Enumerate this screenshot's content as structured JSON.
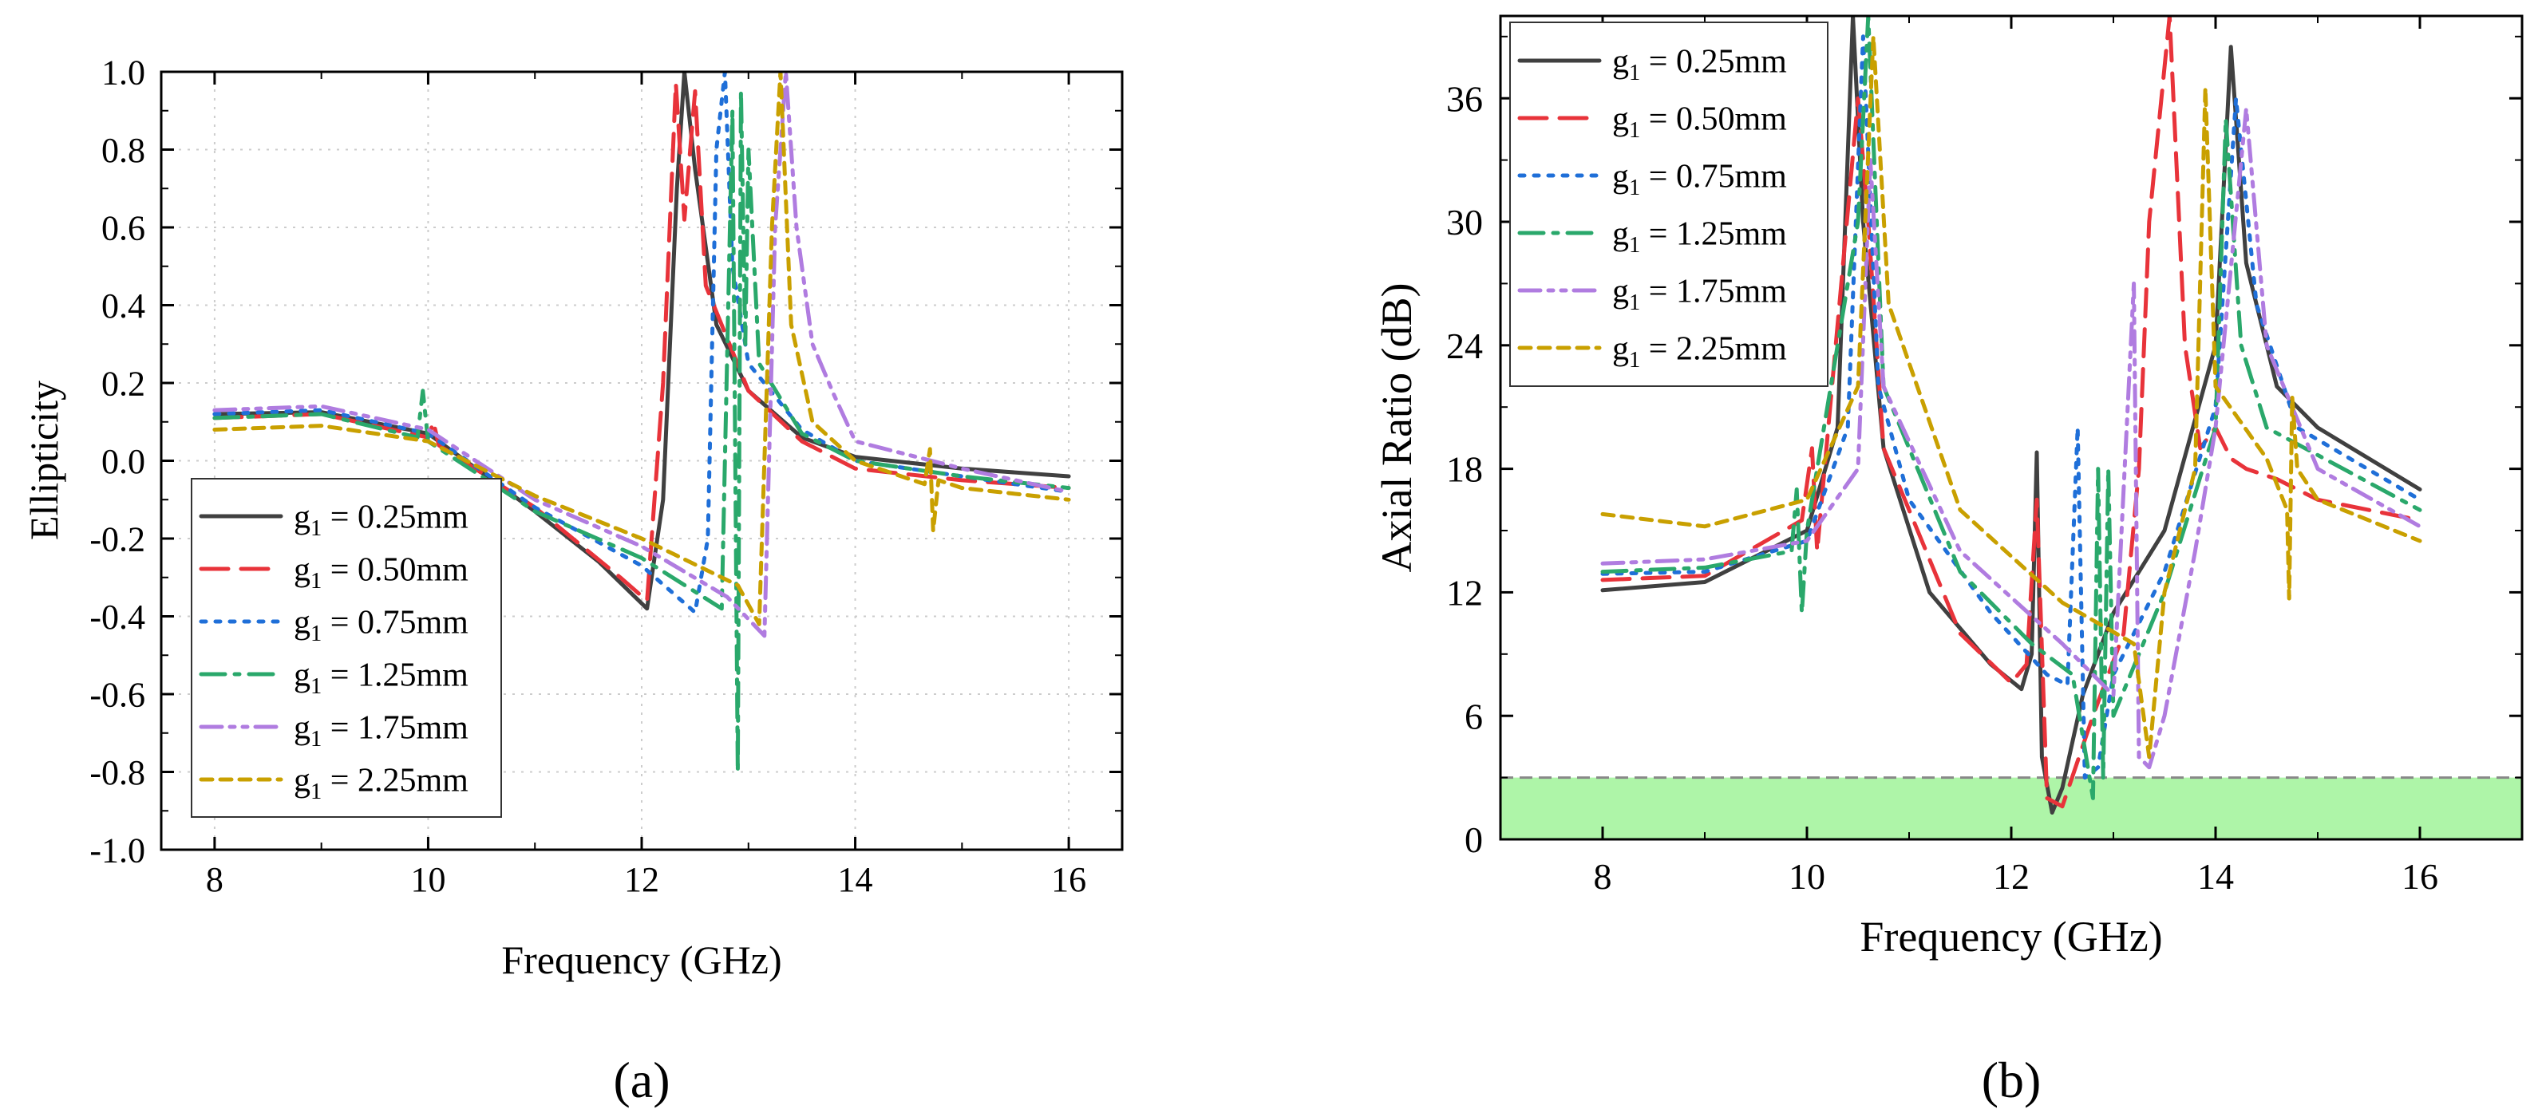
{
  "colors": {
    "g025": "#404040",
    "g050": "#e8333a",
    "g075": "#1f6fd8",
    "g125": "#2aa86b",
    "g175": "#b07ce0",
    "g225": "#c9a000",
    "band_fill": "#aef5a8",
    "band_line": "#888888",
    "grid": "#cccccc"
  },
  "chart_data": [
    {
      "type": "line",
      "panel_label": "(a)",
      "title": "",
      "xlabel": "Frequency (GHz)",
      "ylabel": "Ellipticity",
      "xlim": [
        7.5,
        16.5
      ],
      "ylim": [
        -1.0,
        1.0
      ],
      "grid": true,
      "legend_position": "bottom-left",
      "x_ticks": [
        8,
        10,
        12,
        14,
        16
      ],
      "x_tick_labels": [
        "8",
        "10",
        "12",
        "14",
        "16"
      ],
      "y_ticks": [
        -1.0,
        -0.8,
        -0.6,
        -0.4,
        -0.2,
        0.0,
        0.2,
        0.4,
        0.6,
        0.8,
        1.0
      ],
      "y_tick_labels": [
        "-1.0",
        "-0.8",
        "-0.6",
        "-0.4",
        "-0.2",
        "0.0",
        "0.2",
        "0.4",
        "0.6",
        "0.8",
        "1.0"
      ],
      "series": [
        {
          "name": "g1 = 0.25mm",
          "label_main": "g",
          "label_sub": "1",
          "label_rest": " = 0.25mm",
          "color_key": "g025",
          "dash": "solid",
          "x": [
            8.0,
            9.0,
            10.0,
            11.0,
            11.6,
            12.05,
            12.2,
            12.33,
            12.4,
            12.5,
            12.7,
            13.0,
            13.5,
            14.0,
            15.0,
            16.0
          ],
          "y": [
            0.12,
            0.125,
            0.07,
            -0.13,
            -0.26,
            -0.38,
            -0.1,
            0.7,
            1.0,
            0.75,
            0.35,
            0.18,
            0.06,
            0.01,
            -0.02,
            -0.04
          ]
        },
        {
          "name": "g1 = 0.50mm",
          "label_main": "g",
          "label_sub": "1",
          "label_rest": " = 0.50mm",
          "color_key": "g050",
          "dash": "dashed",
          "x": [
            8.0,
            9.0,
            10.0,
            10.05,
            10.1,
            11.0,
            11.8,
            12.05,
            12.2,
            12.32,
            12.4,
            12.5,
            12.6,
            13.0,
            13.5,
            14.0,
            15.0,
            16.0
          ],
          "y": [
            0.11,
            0.12,
            0.06,
            0.1,
            0.04,
            -0.12,
            -0.3,
            -0.36,
            0.2,
            0.97,
            0.62,
            0.95,
            0.45,
            0.18,
            0.05,
            -0.02,
            -0.05,
            -0.07
          ]
        },
        {
          "name": "g1 = 0.75mm",
          "label_main": "g",
          "label_sub": "1",
          "label_rest": " = 0.75mm",
          "color_key": "g075",
          "dash": "dotted",
          "x": [
            8.0,
            9.0,
            10.0,
            11.0,
            12.0,
            12.5,
            12.62,
            12.7,
            12.78,
            12.85,
            13.0,
            13.5,
            14.0,
            15.0,
            16.0
          ],
          "y": [
            0.12,
            0.13,
            0.07,
            -0.12,
            -0.27,
            -0.39,
            -0.2,
            0.8,
            1.0,
            0.5,
            0.25,
            0.08,
            0.0,
            -0.04,
            -0.08
          ]
        },
        {
          "name": "g1 = 1.25mm",
          "label_main": "g",
          "label_sub": "1",
          "label_rest": " = 1.25mm",
          "color_key": "g125",
          "dash": "dashdot",
          "x": [
            8.0,
            9.0,
            9.9,
            9.95,
            10.0,
            11.0,
            12.0,
            12.75,
            12.85,
            12.9,
            12.93,
            12.97,
            13.0,
            13.1,
            13.5,
            14.0,
            15.0,
            16.0
          ],
          "y": [
            0.11,
            0.12,
            0.06,
            0.18,
            0.05,
            -0.13,
            -0.25,
            -0.38,
            0.9,
            -0.8,
            0.95,
            0.3,
            0.8,
            0.25,
            0.07,
            0.0,
            -0.04,
            -0.07
          ]
        },
        {
          "name": "g1 = 1.75mm",
          "label_main": "g",
          "label_sub": "1",
          "label_rest": " = 1.75mm",
          "color_key": "g175",
          "dash": "dashdotdot",
          "x": [
            8.0,
            9.0,
            10.0,
            11.0,
            12.0,
            12.8,
            13.15,
            13.25,
            13.35,
            13.45,
            13.6,
            13.8,
            14.0,
            15.0,
            16.0
          ],
          "y": [
            0.13,
            0.14,
            0.08,
            -0.1,
            -0.22,
            -0.35,
            -0.45,
            0.6,
            1.0,
            0.6,
            0.3,
            0.17,
            0.05,
            -0.02,
            -0.08
          ]
        },
        {
          "name": "g1 = 2.25mm",
          "label_main": "g",
          "label_sub": "1",
          "label_rest": " = 2.25mm",
          "color_key": "g225",
          "dash": "shortdash",
          "x": [
            8.0,
            9.0,
            10.0,
            11.0,
            12.0,
            12.9,
            13.1,
            13.22,
            13.3,
            13.4,
            13.6,
            14.0,
            14.65,
            14.7,
            14.73,
            14.78,
            15.0,
            16.0
          ],
          "y": [
            0.08,
            0.09,
            0.05,
            -0.09,
            -0.2,
            -0.32,
            -0.42,
            0.6,
            1.0,
            0.35,
            0.1,
            0.0,
            -0.06,
            0.03,
            -0.18,
            -0.05,
            -0.07,
            -0.1
          ]
        }
      ]
    },
    {
      "type": "line",
      "panel_label": "(b)",
      "title": "",
      "xlabel": "Frequency (GHz)",
      "ylabel": "Axial Ratio (dB)",
      "xlim": [
        7.0,
        17.0
      ],
      "ylim": [
        0,
        40
      ],
      "grid": false,
      "legend_position": "top-left",
      "threshold": {
        "value": 3,
        "description": "3 dB axial ratio band"
      },
      "x_ticks": [
        8,
        10,
        12,
        14,
        16
      ],
      "x_tick_labels": [
        "8",
        "10",
        "12",
        "14",
        "16"
      ],
      "y_ticks": [
        0,
        6,
        12,
        18,
        24,
        30,
        36
      ],
      "y_tick_labels": [
        "0",
        "6",
        "12",
        "18",
        "24",
        "30",
        "36"
      ],
      "series": [
        {
          "name": "g1 = 0.25mm",
          "label_main": "g",
          "label_sub": "1",
          "label_rest": " = 0.25mm",
          "color_key": "g025",
          "dash": "solid",
          "x": [
            8.0,
            9.0,
            10.0,
            10.3,
            10.45,
            10.55,
            10.75,
            11.2,
            11.8,
            12.1,
            12.2,
            12.25,
            12.3,
            12.4,
            12.5,
            12.7,
            13.0,
            13.5,
            14.0,
            14.15,
            14.3,
            14.6,
            15.0,
            16.0
          ],
          "y": [
            12.1,
            12.5,
            15.0,
            20.0,
            40.0,
            30.0,
            19.0,
            12.0,
            8.5,
            7.3,
            9.0,
            18.8,
            4.0,
            1.3,
            2.5,
            7.0,
            11.0,
            15.0,
            24.0,
            38.5,
            28.0,
            22.0,
            20.0,
            17.0
          ]
        },
        {
          "name": "g1 = 0.50mm",
          "label_main": "g",
          "label_sub": "1",
          "label_rest": " = 0.50mm",
          "color_key": "g050",
          "dash": "dashed",
          "x": [
            8.0,
            9.0,
            9.95,
            10.05,
            10.1,
            10.5,
            10.6,
            10.75,
            11.5,
            12.0,
            12.15,
            12.25,
            12.35,
            12.5,
            12.8,
            13.1,
            13.25,
            13.35,
            13.55,
            13.7,
            13.85,
            14.0,
            14.15,
            14.3,
            14.6,
            15.0,
            16.0
          ],
          "y": [
            12.6,
            12.8,
            15.5,
            19.0,
            14.0,
            36.0,
            30.0,
            19.0,
            10.0,
            7.6,
            8.5,
            16.5,
            2.0,
            1.6,
            6.0,
            10.0,
            18.0,
            30.0,
            40.0,
            24.0,
            19.0,
            20.0,
            18.5,
            18.0,
            17.5,
            16.5,
            15.5
          ]
        },
        {
          "name": "g1 = 0.75mm",
          "label_main": "g",
          "label_sub": "1",
          "label_rest": " = 0.75mm",
          "color_key": "g075",
          "dash": "dotted",
          "x": [
            8.0,
            9.0,
            10.0,
            10.4,
            10.55,
            10.7,
            11.0,
            11.8,
            12.35,
            12.55,
            12.65,
            12.72,
            12.85,
            13.0,
            13.5,
            14.0,
            14.2,
            14.4,
            14.8,
            16.0
          ],
          "y": [
            12.9,
            13.0,
            14.5,
            20.0,
            39.0,
            22.0,
            16.5,
            11.0,
            8.0,
            7.5,
            20.0,
            3.0,
            3.5,
            8.0,
            13.0,
            21.0,
            36.0,
            26.0,
            20.0,
            16.5
          ]
        },
        {
          "name": "g1 = 1.25mm",
          "label_main": "g",
          "label_sub": "1",
          "label_rest": " = 1.25mm",
          "color_key": "g125",
          "dash": "dashdot",
          "x": [
            8.0,
            9.0,
            9.85,
            9.9,
            9.95,
            10.0,
            10.5,
            10.6,
            10.75,
            11.5,
            12.2,
            12.6,
            12.8,
            12.85,
            12.9,
            12.95,
            13.0,
            13.5,
            14.0,
            14.1,
            14.25,
            14.5,
            16.0
          ],
          "y": [
            13.0,
            13.2,
            14.0,
            17.0,
            11.0,
            15.0,
            30.0,
            40.0,
            22.0,
            13.0,
            9.5,
            8.0,
            2.0,
            18.0,
            3.0,
            18.0,
            6.0,
            12.0,
            20.0,
            35.0,
            24.0,
            20.0,
            16.0
          ]
        },
        {
          "name": "g1 = 1.75mm",
          "label_main": "g",
          "label_sub": "1",
          "label_rest": " = 1.75mm",
          "color_key": "g175",
          "dash": "dashdotdot",
          "x": [
            8.0,
            9.0,
            10.0,
            10.5,
            10.62,
            10.75,
            11.5,
            12.5,
            13.0,
            13.2,
            13.25,
            13.35,
            13.5,
            13.8,
            14.0,
            14.3,
            14.5,
            15.0,
            16.0
          ],
          "y": [
            13.4,
            13.6,
            14.5,
            18.0,
            33.0,
            22.0,
            14.0,
            9.5,
            7.0,
            27.0,
            4.0,
            3.5,
            6.0,
            14.0,
            20.0,
            35.5,
            24.0,
            18.0,
            15.2
          ]
        },
        {
          "name": "g1 = 2.25mm",
          "label_main": "g",
          "label_sub": "1",
          "label_rest": " = 2.25mm",
          "color_key": "g225",
          "dash": "shortdash",
          "x": [
            8.0,
            9.0,
            10.0,
            10.5,
            10.65,
            10.8,
            11.5,
            12.5,
            13.2,
            13.35,
            13.5,
            13.8,
            13.9,
            14.0,
            14.5,
            14.7,
            14.72,
            14.75,
            14.8,
            15.0,
            16.0
          ],
          "y": [
            15.8,
            15.2,
            16.5,
            22.0,
            39.0,
            26.0,
            16.0,
            11.5,
            9.5,
            4.0,
            12.0,
            18.0,
            36.5,
            22.0,
            18.5,
            16.0,
            11.7,
            21.5,
            18.0,
            16.5,
            14.5
          ]
        }
      ]
    }
  ]
}
